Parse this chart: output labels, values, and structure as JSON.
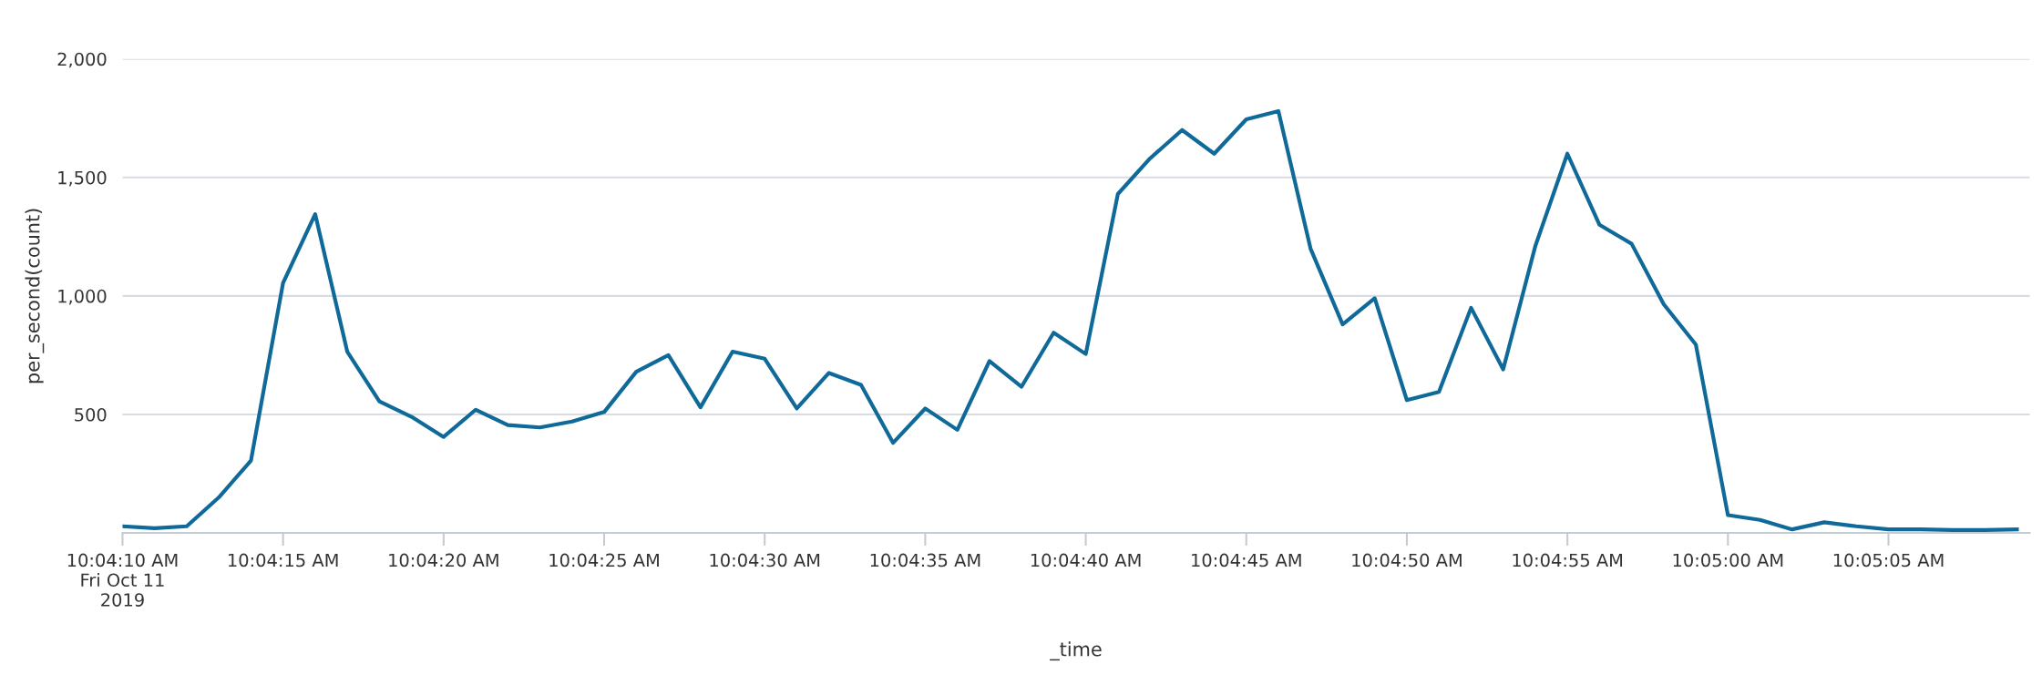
{
  "chart_data": {
    "type": "line",
    "xlabel": "_time",
    "ylabel": "per_second(count)",
    "categories": [
      "10:04:10 AM\nFri Oct 11\n2019",
      null,
      null,
      null,
      null,
      "10:04:15 AM",
      null,
      null,
      null,
      null,
      "10:04:20 AM",
      null,
      null,
      null,
      null,
      "10:04:25 AM",
      null,
      null,
      null,
      null,
      "10:04:30 AM",
      null,
      null,
      null,
      null,
      "10:04:35 AM",
      null,
      null,
      null,
      null,
      "10:04:40 AM",
      null,
      null,
      null,
      null,
      "10:04:45 AM",
      null,
      null,
      null,
      null,
      "10:04:50 AM",
      null,
      null,
      null,
      null,
      "10:04:55 AM",
      null,
      null,
      null,
      null,
      "10:05:00 AM",
      null,
      null,
      null,
      null,
      "10:05:05 AM",
      null,
      null,
      null,
      null
    ],
    "series": [
      {
        "color": "#0f6a99",
        "values": [
          28,
          20,
          28,
          150,
          305,
          1055,
          1345,
          765,
          555,
          490,
          405,
          520,
          455,
          445,
          470,
          510,
          680,
          750,
          530,
          765,
          735,
          525,
          675,
          625,
          380,
          525,
          435,
          725,
          617,
          845,
          755,
          1430,
          1580,
          1700,
          1600,
          1745,
          1780,
          1200,
          880,
          990,
          560,
          595,
          950,
          690,
          1210,
          1600,
          1300,
          1220,
          965,
          795,
          75,
          55,
          15,
          45,
          28,
          15,
          15,
          12,
          12,
          15
        ]
      }
    ],
    "ylim": [
      0,
      2000
    ],
    "yticks": [
      {
        "value": 500,
        "label": "500"
      },
      {
        "value": 1000,
        "label": "1,000"
      },
      {
        "value": 1500,
        "label": "1,500"
      },
      {
        "value": 2000,
        "label": "2,000"
      }
    ],
    "grid": "y",
    "line_style": "solid"
  }
}
